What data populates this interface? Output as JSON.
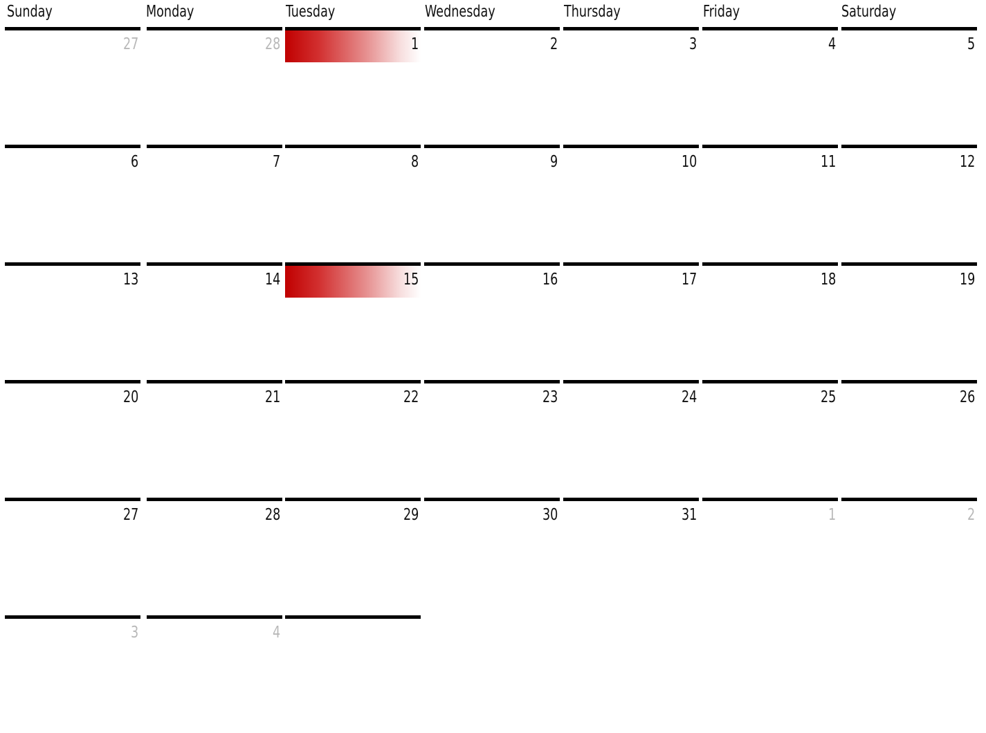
{
  "weekdays": [
    "Sunday",
    "Monday",
    "Tuesday",
    "Wednesday",
    "Thursday",
    "Friday",
    "Saturday"
  ],
  "weeks": [
    [
      {
        "day": "27",
        "muted": true
      },
      {
        "day": "28",
        "muted": true
      },
      {
        "day": "1",
        "highlight": true
      },
      {
        "day": "2"
      },
      {
        "day": "3"
      },
      {
        "day": "4"
      },
      {
        "day": "5"
      }
    ],
    [
      {
        "day": "6"
      },
      {
        "day": "7"
      },
      {
        "day": "8"
      },
      {
        "day": "9"
      },
      {
        "day": "10"
      },
      {
        "day": "11"
      },
      {
        "day": "12"
      }
    ],
    [
      {
        "day": "13"
      },
      {
        "day": "14"
      },
      {
        "day": "15",
        "highlight": true
      },
      {
        "day": "16"
      },
      {
        "day": "17"
      },
      {
        "day": "18"
      },
      {
        "day": "19"
      }
    ],
    [
      {
        "day": "20"
      },
      {
        "day": "21"
      },
      {
        "day": "22"
      },
      {
        "day": "23"
      },
      {
        "day": "24"
      },
      {
        "day": "25"
      },
      {
        "day": "26"
      }
    ],
    [
      {
        "day": "27"
      },
      {
        "day": "28"
      },
      {
        "day": "29"
      },
      {
        "day": "30"
      },
      {
        "day": "31"
      },
      {
        "day": "1",
        "muted": true
      },
      {
        "day": "2",
        "muted": true
      }
    ],
    [
      {
        "day": "3",
        "muted": true
      },
      {
        "day": "4",
        "muted": true
      },
      {
        "day": ""
      }
    ]
  ],
  "colors": {
    "highlight": "#c00000",
    "muted_text": "#b8b8b8",
    "rule": "#000000"
  }
}
